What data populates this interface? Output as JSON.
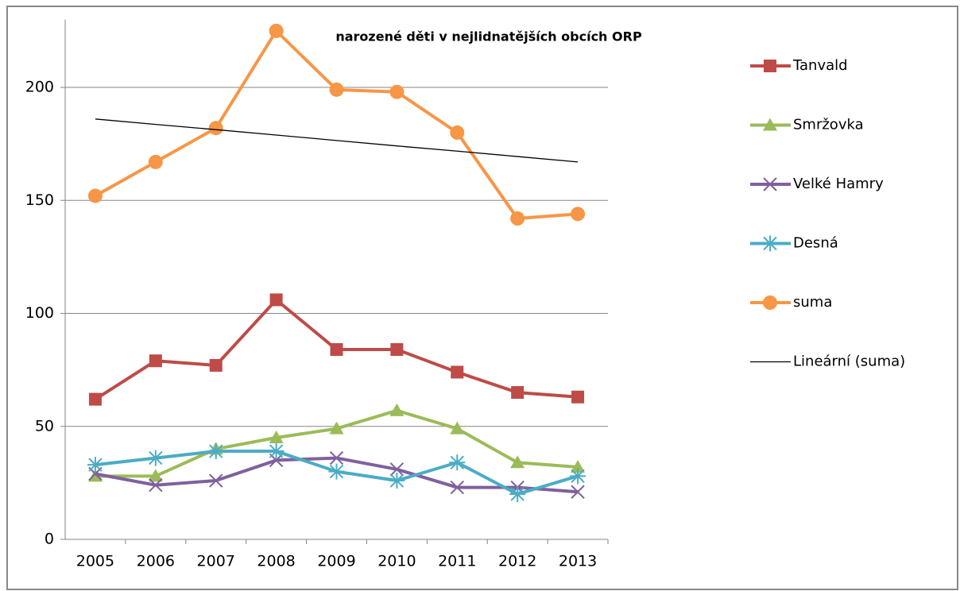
{
  "chart_data": {
    "type": "line",
    "title": "narozené děti v nejlidnatějších obcích ORP",
    "categories": [
      "2005",
      "2006",
      "2007",
      "2008",
      "2009",
      "2010",
      "2011",
      "2012",
      "2013"
    ],
    "series": [
      {
        "name": "Tanvald",
        "color": "#be4b48",
        "marker": "square",
        "values": [
          62,
          79,
          77,
          106,
          84,
          84,
          74,
          65,
          63
        ]
      },
      {
        "name": "Smržovka",
        "color": "#9bbb59",
        "marker": "triangle",
        "values": [
          28,
          28,
          40,
          45,
          49,
          57,
          49,
          34,
          32
        ]
      },
      {
        "name": "Velké Hamry",
        "color": "#7f609e",
        "marker": "x",
        "values": [
          29,
          24,
          26,
          35,
          36,
          31,
          23,
          23,
          21
        ]
      },
      {
        "name": "Desná",
        "color": "#4bacc6",
        "marker": "asterisk",
        "values": [
          33,
          36,
          39,
          39,
          30,
          26,
          34,
          20,
          28
        ]
      },
      {
        "name": "suma",
        "color": "#f79646",
        "marker": "circle",
        "values": [
          152,
          167,
          182,
          225,
          199,
          198,
          180,
          142,
          144
        ]
      },
      {
        "name": "Lineární (suma)",
        "color": "#000000",
        "marker": "none",
        "values": [
          186,
          183.6,
          181.3,
          178.9,
          176.5,
          174.1,
          171.8,
          169.4,
          167
        ]
      }
    ],
    "ylim": [
      0,
      230
    ],
    "yticks": [
      0,
      50,
      100,
      150,
      200
    ],
    "grid": true,
    "legend": "right"
  }
}
